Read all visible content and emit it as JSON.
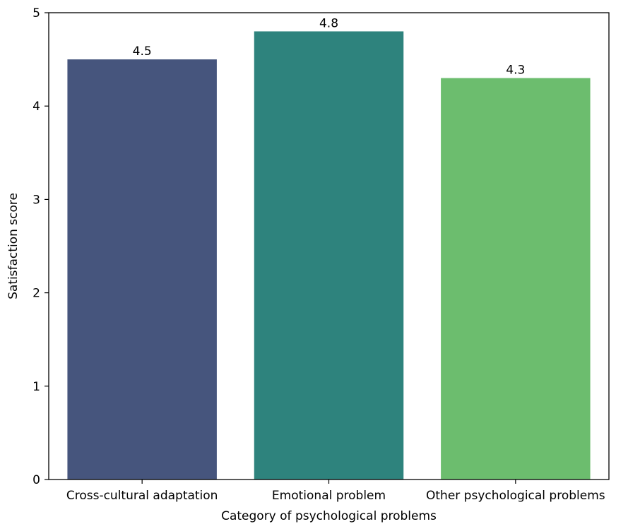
{
  "chart_data": {
    "type": "bar",
    "title": "",
    "xlabel": "Category of psychological problems",
    "ylabel": "Satisfaction score",
    "categories": [
      "Cross-cultural adaptation",
      "Emotional problem",
      "Other psychological problems"
    ],
    "values": [
      4.5,
      4.8,
      4.3
    ],
    "colors": [
      "#46557d",
      "#2e837d",
      "#6cbd6e"
    ],
    "ylim": [
      0,
      5
    ],
    "yticks": [
      0,
      1,
      2,
      3,
      4,
      5
    ],
    "grid": false,
    "legend": "none"
  }
}
